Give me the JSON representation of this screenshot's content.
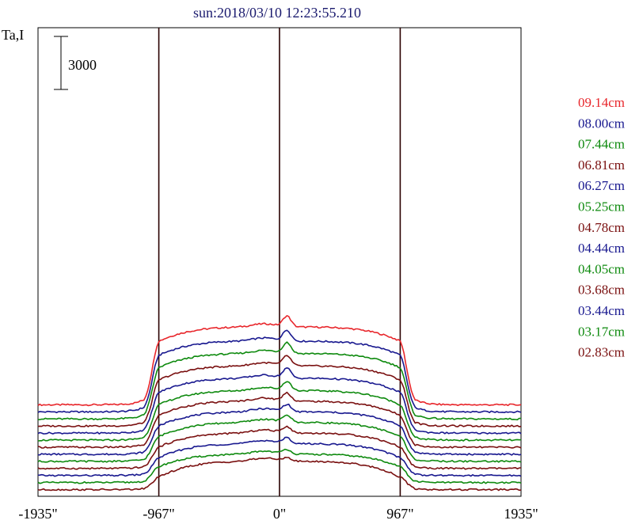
{
  "chart_data": {
    "type": "line",
    "title": "sun:2018/03/10 12:23:55.210",
    "ylabel": "Ta,I",
    "scale_bar_label": "3000",
    "x_ticks": [
      {
        "value": -1935,
        "label": "-1935\""
      },
      {
        "value": -967,
        "label": "-967\""
      },
      {
        "value": 0,
        "label": "0\""
      },
      {
        "value": 967,
        "label": "967\""
      },
      {
        "value": 1935,
        "label": "1935\""
      }
    ],
    "xlim": [
      -1935,
      1935
    ],
    "guide_lines_x": [
      -967,
      0,
      967
    ],
    "limb_x": 967,
    "series": [
      {
        "name": "09.14cm",
        "color": "#e8262b",
        "off_disk": 5400,
        "disk_center": 9800,
        "limb": 9000,
        "peak": 600
      },
      {
        "name": "08.00cm",
        "color": "#18188f",
        "off_disk": 5000,
        "disk_center": 9000,
        "limb": 8200,
        "peak": 600
      },
      {
        "name": "07.44cm",
        "color": "#0e8a0e",
        "off_disk": 4600,
        "disk_center": 8300,
        "limb": 7500,
        "peak": 600
      },
      {
        "name": "06.81cm",
        "color": "#7a1010",
        "off_disk": 4200,
        "disk_center": 7600,
        "limb": 6800,
        "peak": 550
      },
      {
        "name": "06.27cm",
        "color": "#18188f",
        "off_disk": 3800,
        "disk_center": 6900,
        "limb": 6100,
        "peak": 550
      },
      {
        "name": "05.25cm",
        "color": "#0e8a0e",
        "off_disk": 3400,
        "disk_center": 6200,
        "limb": 5400,
        "peak": 500
      },
      {
        "name": "04.78cm",
        "color": "#7a1010",
        "off_disk": 3000,
        "disk_center": 5600,
        "limb": 4800,
        "peak": 450
      },
      {
        "name": "04.44cm",
        "color": "#18188f",
        "off_disk": 2600,
        "disk_center": 5000,
        "limb": 4200,
        "peak": 400
      },
      {
        "name": "04.05cm",
        "color": "#0e8a0e",
        "off_disk": 2200,
        "disk_center": 4400,
        "limb": 3600,
        "peak": 400
      },
      {
        "name": "03.68cm",
        "color": "#7a1010",
        "off_disk": 1800,
        "disk_center": 3800,
        "limb": 3000,
        "peak": 350
      },
      {
        "name": "03.44cm",
        "color": "#18188f",
        "off_disk": 1400,
        "disk_center": 3200,
        "limb": 2400,
        "peak": 300
      },
      {
        "name": "03.17cm",
        "color": "#0e8a0e",
        "off_disk": 1000,
        "disk_center": 2600,
        "limb": 1900,
        "peak": 250
      },
      {
        "name": "02.83cm",
        "color": "#7a1010",
        "off_disk": 600,
        "disk_center": 2200,
        "limb": 1300,
        "peak": 200
      }
    ]
  }
}
